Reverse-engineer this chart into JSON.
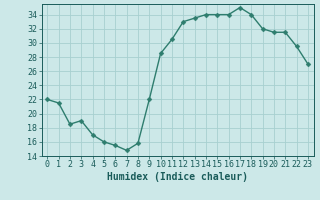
{
  "x": [
    0,
    1,
    2,
    3,
    4,
    5,
    6,
    7,
    8,
    9,
    10,
    11,
    12,
    13,
    14,
    15,
    16,
    17,
    18,
    19,
    20,
    21,
    22,
    23
  ],
  "y": [
    22,
    21.5,
    18.5,
    19,
    17,
    16,
    15.5,
    14.8,
    15.8,
    22,
    28.5,
    30.5,
    33,
    33.5,
    34,
    34,
    34,
    35,
    34,
    32,
    31.5,
    31.5,
    29.5,
    27
  ],
  "line_color": "#2e7d6e",
  "marker_color": "#2e7d6e",
  "bg_color": "#cce8e8",
  "grid_color": "#a8d0d0",
  "xlabel": "Humidex (Indice chaleur)",
  "ylim": [
    14,
    35.5
  ],
  "xlim": [
    -0.5,
    23.5
  ],
  "yticks": [
    14,
    16,
    18,
    20,
    22,
    24,
    26,
    28,
    30,
    32,
    34
  ],
  "xticks": [
    0,
    1,
    2,
    3,
    4,
    5,
    6,
    7,
    8,
    9,
    10,
    11,
    12,
    13,
    14,
    15,
    16,
    17,
    18,
    19,
    20,
    21,
    22,
    23
  ],
  "xtick_labels": [
    "0",
    "1",
    "2",
    "3",
    "4",
    "5",
    "6",
    "7",
    "8",
    "9",
    "10",
    "11",
    "12",
    "13",
    "14",
    "15",
    "16",
    "17",
    "18",
    "19",
    "20",
    "21",
    "22",
    "23"
  ],
  "font_color": "#1a5c5a",
  "tick_fontsize": 6,
  "xlabel_fontsize": 7,
  "line_width": 1.0,
  "marker_size": 2.5
}
